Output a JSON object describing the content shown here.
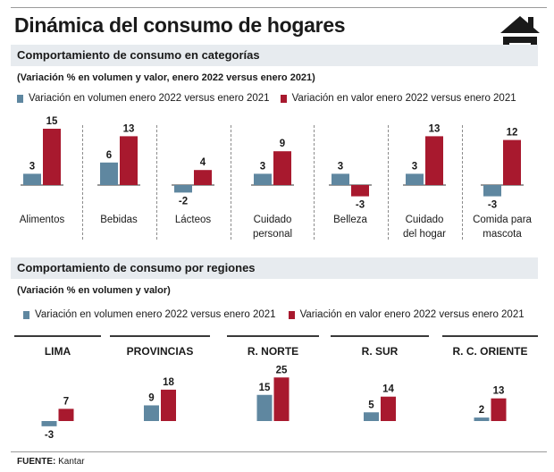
{
  "title": "Dinámica del consumo de hogares",
  "colors": {
    "volume": "#5f87a0",
    "value": "#a8192e",
    "section_bg": "#e7ebef"
  },
  "icon": "house-icon",
  "legend": {
    "volume": "Variación en volumen enero 2022 versus enero 2021",
    "value": "Variación en valor enero 2022 versus enero 2021"
  },
  "section1": {
    "title": "Comportamiento de consumo en categorías",
    "subtitle": "(Variación % en volumen  y valor,  enero 2022 versus enero 2021)"
  },
  "section2": {
    "title": "Comportamiento de consumo por regiones",
    "subtitle": "(Variación % en volumen y valor)"
  },
  "source": {
    "label": "FUENTE:",
    "text": "Kantar"
  },
  "chart_data": [
    {
      "type": "bar",
      "categories": [
        "Alimentos",
        "Bebidas",
        "Lácteos",
        "Cuidado personal",
        "Belleza",
        "Cuidado del hogar",
        "Comida para mascota"
      ],
      "category_lines": [
        [
          "Alimentos"
        ],
        [
          "Bebidas"
        ],
        [
          "Lácteos"
        ],
        [
          "Cuidado",
          "personal"
        ],
        [
          "Belleza"
        ],
        [
          "Cuidado",
          "del hogar"
        ],
        [
          "Comida para",
          "mascota"
        ]
      ],
      "series": [
        {
          "name": "Variación en volumen enero 2022 versus enero 2021",
          "values": [
            3,
            6,
            -2,
            3,
            3,
            3,
            -3
          ]
        },
        {
          "name": "Variación en valor enero 2022 versus enero 2021",
          "values": [
            15,
            13,
            4,
            9,
            -3,
            13,
            12
          ]
        }
      ]
    },
    {
      "type": "bar",
      "categories": [
        "LIMA",
        "PROVINCIAS",
        "R. NORTE",
        "R. SUR",
        "R. C. ORIENTE"
      ],
      "series": [
        {
          "name": "Variación en volumen enero 2022 versus enero 2021",
          "values": [
            -3,
            9,
            15,
            5,
            2
          ]
        },
        {
          "name": "Variación en valor enero 2022 versus enero 2021",
          "values": [
            7,
            18,
            25,
            14,
            13
          ]
        }
      ]
    }
  ]
}
